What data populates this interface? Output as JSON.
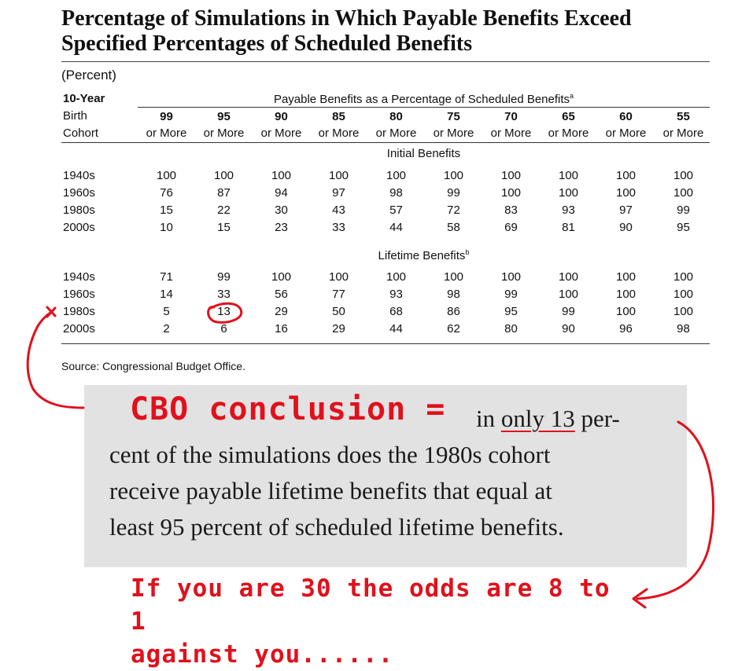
{
  "title": "Percentage of Simulations in Which Payable Benefits Exceed Specified Percentages of Scheduled Benefits",
  "unit": "(Percent)",
  "stub_header": {
    "line1": "10-Year",
    "line2": "Birth",
    "line3": "Cohort"
  },
  "spanner": {
    "text": "Payable Benefits as a Percentage of Scheduled Benefits",
    "note": "a"
  },
  "columns": [
    {
      "pct": "99",
      "suffix": "or More"
    },
    {
      "pct": "95",
      "suffix": "or More"
    },
    {
      "pct": "90",
      "suffix": "or More"
    },
    {
      "pct": "85",
      "suffix": "or More"
    },
    {
      "pct": "80",
      "suffix": "or More"
    },
    {
      "pct": "75",
      "suffix": "or More"
    },
    {
      "pct": "70",
      "suffix": "or More"
    },
    {
      "pct": "65",
      "suffix": "or More"
    },
    {
      "pct": "60",
      "suffix": "or More"
    },
    {
      "pct": "55",
      "suffix": "or More"
    }
  ],
  "sections": [
    {
      "title": "Initial Benefits",
      "note": "",
      "rows": [
        {
          "cohort": "1940s",
          "values": [
            "100",
            "100",
            "100",
            "100",
            "100",
            "100",
            "100",
            "100",
            "100",
            "100"
          ]
        },
        {
          "cohort": "1960s",
          "values": [
            "76",
            "87",
            "94",
            "97",
            "98",
            "99",
            "100",
            "100",
            "100",
            "100"
          ]
        },
        {
          "cohort": "1980s",
          "values": [
            "15",
            "22",
            "30",
            "43",
            "57",
            "72",
            "83",
            "93",
            "97",
            "99"
          ]
        },
        {
          "cohort": "2000s",
          "values": [
            "10",
            "15",
            "23",
            "33",
            "44",
            "58",
            "69",
            "81",
            "90",
            "95"
          ]
        }
      ]
    },
    {
      "title": "Lifetime Benefits",
      "note": "b",
      "rows": [
        {
          "cohort": "1940s",
          "values": [
            "71",
            "99",
            "100",
            "100",
            "100",
            "100",
            "100",
            "100",
            "100",
            "100"
          ]
        },
        {
          "cohort": "1960s",
          "values": [
            "14",
            "33",
            "56",
            "77",
            "93",
            "98",
            "99",
            "100",
            "100",
            "100"
          ]
        },
        {
          "cohort": "1980s",
          "values": [
            "5",
            "13",
            "29",
            "50",
            "68",
            "86",
            "95",
            "99",
            "100",
            "100"
          ]
        },
        {
          "cohort": "2000s",
          "values": [
            "2",
            "6",
            "16",
            "29",
            "44",
            "62",
            "80",
            "90",
            "96",
            "98"
          ]
        }
      ]
    }
  ],
  "source": "Source:   Congressional Budget Office.",
  "annotation": {
    "label": "CBO conclusion =",
    "quote_lines": [
      [
        "in ",
        "only 13",
        " per-"
      ],
      [
        "cent of the simulations does the 1980s cohort"
      ],
      [
        "receive payable lifetime benefits that equal at"
      ],
      [
        "least 95 percent of scheduled lifetime benefits."
      ]
    ],
    "odds_line1": "If you are 30 the odds are 8 to 1",
    "odds_line2": "against you......",
    "accent_color": "#e0111c"
  }
}
